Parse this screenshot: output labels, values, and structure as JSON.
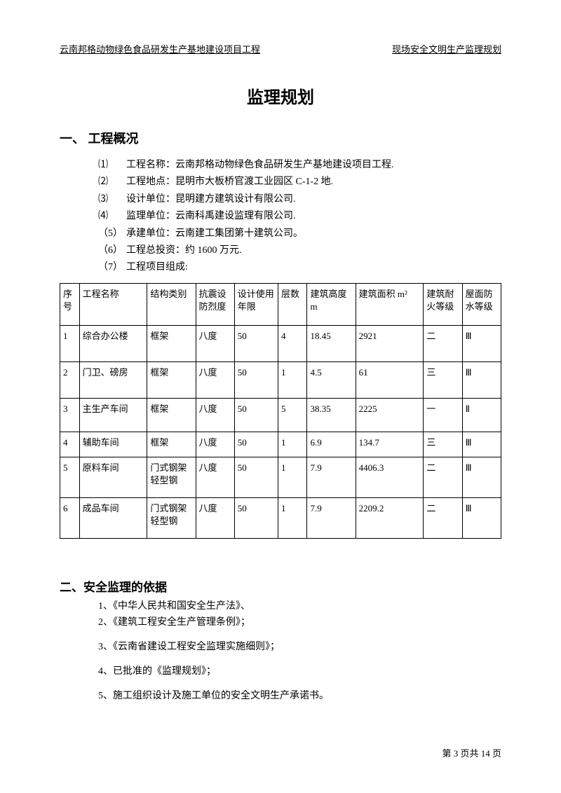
{
  "header": {
    "left": "云南邦格动物绿色食品研发生产基地建设项目工程",
    "right": "现场安全文明生产监理规划"
  },
  "main_title": "监理规划",
  "section1": {
    "title": "一、 工程概况",
    "items": [
      {
        "marker": "⑴",
        "text": "工程名称：云南邦格动物绿色食品研发生产基地建设项目工程."
      },
      {
        "marker": "⑵",
        "text": "工程地点：昆明市大板桥官渡工业园区 C-1-2 地."
      },
      {
        "marker": "⑶",
        "text": "设计单位：昆明建方建筑设计有限公司."
      },
      {
        "marker": "⑷",
        "text": "监理单位：云南科禹建设监理有限公司."
      },
      {
        "marker": "（5）",
        "text": "承建单位：云南建工集团第十建筑公司。"
      },
      {
        "marker": "（6）",
        "text": "工程总投资：约 1600 万元."
      },
      {
        "marker": "（7）",
        "text": "工程项目组成:"
      }
    ]
  },
  "table": {
    "headers": [
      "序号",
      "工程名称",
      "结构类别",
      "抗震设防烈度",
      "设计使用年限",
      "层数",
      "建筑高度 m",
      "建筑面积 m²",
      "建筑耐火等级",
      "屋面防水等级"
    ],
    "rows": [
      [
        "1",
        "综合办公楼",
        "框架",
        "八度",
        "50",
        "4",
        "18.45",
        "2921",
        "二",
        "Ⅲ"
      ],
      [
        "2",
        "门卫、磅房",
        "框架",
        "八度",
        "50",
        "1",
        "4.5",
        "61",
        "三",
        "Ⅲ"
      ],
      [
        "3",
        "主生产车间",
        "框架",
        "八度",
        "50",
        "5",
        "38.35",
        "2225",
        "一",
        "Ⅱ"
      ],
      [
        "4",
        "辅助车间",
        "框架",
        "八度",
        "50",
        "1",
        "6.9",
        "134.7",
        "三",
        "Ⅲ"
      ],
      [
        "5",
        "原料车间",
        "门式钢架轻型钢",
        "八度",
        "50",
        "1",
        "7.9",
        "4406.3",
        "二",
        "Ⅲ"
      ],
      [
        "6",
        "成品车间",
        "门式钢架轻型钢",
        "八度",
        "50",
        "1",
        "7.9",
        "2209.2",
        "二",
        "Ⅲ"
      ]
    ]
  },
  "section2": {
    "title": "二、安全监理的依据",
    "items": [
      "1、《中华人民共和国安全生产法》、",
      "2、《建筑工程安全生产管理条例》；",
      "3、《云南省建设工程安全监理实施细则》；",
      "4、已批准的《监理规划》；",
      "5、施工组织设计及施工单位的安全文明生产承诺书。"
    ]
  },
  "footer": "第 3 页共 14 页"
}
